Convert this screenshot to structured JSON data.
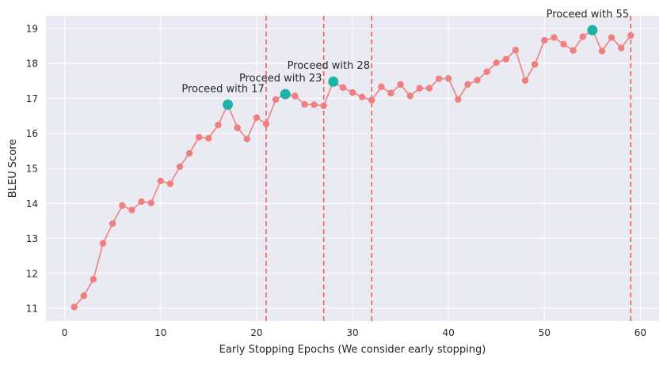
{
  "chart_data": {
    "type": "line",
    "xlabel": "Early Stopping Epochs (We consider early stopping)",
    "ylabel": "BLEU Score",
    "xlim": [
      -1.95,
      61.95
    ],
    "ylim": [
      10.64,
      19.36
    ],
    "xticks": [
      0,
      10,
      20,
      30,
      40,
      50,
      60
    ],
    "yticks": [
      11,
      12,
      13,
      14,
      15,
      16,
      17,
      18,
      19
    ],
    "grid": true,
    "series": [
      {
        "color": "#f08080",
        "x": [
          1,
          2,
          3,
          4,
          5,
          6,
          7,
          8,
          9,
          10,
          11,
          12,
          13,
          14,
          15,
          16,
          17,
          18,
          19,
          20,
          21,
          22,
          23,
          24,
          25,
          26,
          27,
          28,
          29,
          30,
          31,
          32,
          33,
          34,
          35,
          36,
          37,
          38,
          39,
          40,
          41,
          42,
          43,
          44,
          45,
          46,
          47,
          48,
          49,
          50,
          51,
          52,
          53,
          54,
          55,
          56,
          57,
          58,
          59
        ],
        "y": [
          11.04,
          11.36,
          11.83,
          12.86,
          13.42,
          13.94,
          13.81,
          14.05,
          14.01,
          14.64,
          14.56,
          15.05,
          15.43,
          15.89,
          15.86,
          16.24,
          16.82,
          16.16,
          15.84,
          16.45,
          16.27,
          16.97,
          17.12,
          17.07,
          16.83,
          16.82,
          16.79,
          17.48,
          17.31,
          17.17,
          17.04,
          16.95,
          17.33,
          17.15,
          17.4,
          17.07,
          17.29,
          17.29,
          17.56,
          17.57,
          16.97,
          17.4,
          17.52,
          17.76,
          18.02,
          18.12,
          18.38,
          17.51,
          17.97,
          18.66,
          18.74,
          18.55,
          18.37,
          18.76,
          18.95,
          18.35,
          18.74,
          18.44,
          18.8
        ]
      }
    ],
    "highlights": [
      {
        "x": 17,
        "y": 16.82,
        "label": "Proceed with 17"
      },
      {
        "x": 23,
        "y": 17.12,
        "label": "Proceed with 23"
      },
      {
        "x": 28,
        "y": 17.48,
        "label": "Proceed with 28"
      },
      {
        "x": 55,
        "y": 18.95,
        "label": "Proceed with 55"
      }
    ],
    "vlines": [
      21,
      27,
      32,
      59
    ],
    "colors": {
      "background": "#eaeaf2",
      "grid": "#ffffff",
      "line": "#f08080",
      "marker": "#f08080",
      "highlight": "#20b2aa",
      "vline": "#f06060"
    }
  }
}
